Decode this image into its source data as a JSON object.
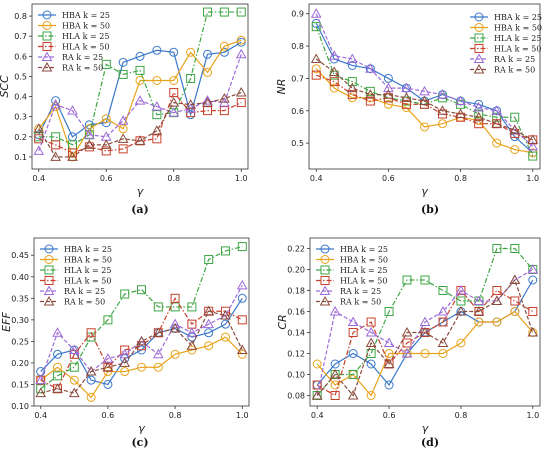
{
  "chart_data": [
    {
      "type": "line",
      "panel": "(a)",
      "xlabel": "γ",
      "ylabel": "SCC",
      "xlim": [
        0.38,
        1.02
      ],
      "ylim": [
        0.04,
        0.86
      ],
      "xticks": [
        "0.4",
        "0.6",
        "0.8",
        "1.0"
      ],
      "yticks": [
        "0.1",
        "0.2",
        "0.3",
        "0.4",
        "0.5",
        "0.6",
        "0.7",
        "0.8"
      ],
      "legend": "top-left",
      "x": [
        0.4,
        0.45,
        0.5,
        0.55,
        0.6,
        0.65,
        0.7,
        0.75,
        0.8,
        0.85,
        0.9,
        0.95,
        1.0
      ],
      "series": [
        {
          "name": "HBA k = 25",
          "values": [
            0.21,
            0.38,
            0.2,
            0.26,
            0.27,
            0.57,
            0.6,
            0.63,
            0.62,
            0.31,
            0.61,
            0.62,
            0.67
          ]
        },
        {
          "name": "HBA k = 50",
          "values": [
            0.24,
            0.35,
            0.1,
            0.24,
            0.29,
            0.24,
            0.48,
            0.48,
            0.48,
            0.62,
            0.52,
            0.65,
            0.68
          ]
        },
        {
          "name": "HLA k = 25",
          "values": [
            0.2,
            0.2,
            0.16,
            0.21,
            0.56,
            0.51,
            0.53,
            0.31,
            0.32,
            0.49,
            0.82,
            0.82,
            0.82
          ]
        },
        {
          "name": "HLA k = 50",
          "values": [
            0.19,
            0.16,
            0.12,
            0.15,
            0.13,
            0.14,
            0.18,
            0.19,
            0.42,
            0.32,
            0.33,
            0.33,
            0.37
          ]
        },
        {
          "name": "RA k = 25",
          "values": [
            0.13,
            0.36,
            0.33,
            0.21,
            0.2,
            0.28,
            0.38,
            0.35,
            0.32,
            0.34,
            0.38,
            0.37,
            0.61
          ]
        },
        {
          "name": "RA k = 50",
          "values": [
            0.24,
            0.1,
            0.1,
            0.16,
            0.16,
            0.19,
            0.18,
            0.23,
            0.37,
            0.36,
            0.37,
            0.39,
            0.42
          ]
        }
      ]
    },
    {
      "type": "line",
      "panel": "(b)",
      "xlabel": "γ",
      "ylabel": "NR",
      "xlim": [
        0.38,
        1.02
      ],
      "ylim": [
        0.42,
        0.93
      ],
      "xticks": [
        "0.4",
        "0.6",
        "0.8",
        "1.0"
      ],
      "yticks": [
        "0.5",
        "0.6",
        "0.7",
        "0.8",
        "0.9"
      ],
      "legend": "top-right",
      "x": [
        0.4,
        0.45,
        0.5,
        0.55,
        0.6,
        0.65,
        0.7,
        0.75,
        0.8,
        0.85,
        0.9,
        0.95,
        1.0
      ],
      "series": [
        {
          "name": "HBA k = 25",
          "values": [
            0.87,
            0.76,
            0.74,
            0.73,
            0.7,
            0.67,
            0.63,
            0.65,
            0.63,
            0.62,
            0.6,
            0.52,
            0.47
          ]
        },
        {
          "name": "HBA k = 50",
          "values": [
            0.73,
            0.67,
            0.64,
            0.64,
            0.62,
            0.61,
            0.55,
            0.56,
            0.58,
            0.57,
            0.5,
            0.48,
            0.47
          ]
        },
        {
          "name": "HLA k = 25",
          "values": [
            0.86,
            0.71,
            0.69,
            0.66,
            0.64,
            0.63,
            0.62,
            0.64,
            0.62,
            0.59,
            0.58,
            0.58,
            0.46
          ]
        },
        {
          "name": "HLA k = 50",
          "values": [
            0.71,
            0.69,
            0.65,
            0.63,
            0.64,
            0.62,
            0.62,
            0.59,
            0.58,
            0.56,
            0.56,
            0.53,
            0.51
          ]
        },
        {
          "name": "RA k = 25",
          "values": [
            0.9,
            0.77,
            0.76,
            0.73,
            0.67,
            0.67,
            0.66,
            0.65,
            0.63,
            0.61,
            0.6,
            0.54,
            0.49
          ]
        },
        {
          "name": "RA k = 50",
          "values": [
            0.76,
            0.72,
            0.67,
            0.65,
            0.65,
            0.64,
            0.63,
            0.6,
            0.59,
            0.58,
            0.56,
            0.54,
            0.51
          ]
        }
      ]
    },
    {
      "type": "line",
      "panel": "(c)",
      "xlabel": "γ",
      "ylabel": "EFF",
      "xlim": [
        0.38,
        1.02
      ],
      "ylim": [
        0.1,
        0.49
      ],
      "xticks": [
        "0.4",
        "0.6",
        "0.8",
        "1.0"
      ],
      "yticks": [
        "0.10",
        "0.15",
        "0.20",
        "0.25",
        "0.30",
        "0.35",
        "0.40",
        "0.45"
      ],
      "legend": "top-left",
      "x": [
        0.4,
        0.45,
        0.5,
        0.55,
        0.6,
        0.65,
        0.7,
        0.75,
        0.8,
        0.85,
        0.9,
        0.95,
        1.0
      ],
      "series": [
        {
          "name": "HBA k = 25",
          "values": [
            0.18,
            0.22,
            0.23,
            0.16,
            0.15,
            0.21,
            0.23,
            0.27,
            0.28,
            0.26,
            0.27,
            0.29,
            0.35
          ]
        },
        {
          "name": "HBA k = 50",
          "values": [
            0.16,
            0.19,
            0.16,
            0.12,
            0.18,
            0.18,
            0.19,
            0.19,
            0.22,
            0.23,
            0.24,
            0.26,
            0.22
          ]
        },
        {
          "name": "HLA k = 25",
          "values": [
            0.14,
            0.17,
            0.19,
            0.26,
            0.3,
            0.36,
            0.37,
            0.33,
            0.33,
            0.33,
            0.44,
            0.46,
            0.47
          ]
        },
        {
          "name": "HLA k = 50",
          "values": [
            0.16,
            0.14,
            0.22,
            0.27,
            0.19,
            0.23,
            0.24,
            0.27,
            0.35,
            0.29,
            0.32,
            0.32,
            0.3
          ]
        },
        {
          "name": "RA k = 25",
          "values": [
            0.16,
            0.27,
            0.23,
            0.18,
            0.21,
            0.22,
            0.25,
            0.22,
            0.29,
            0.27,
            0.29,
            0.31,
            0.38
          ]
        },
        {
          "name": "RA k = 50",
          "values": [
            0.13,
            0.14,
            0.13,
            0.18,
            0.19,
            0.2,
            0.25,
            0.27,
            0.28,
            0.24,
            0.32,
            0.31,
            0.23
          ]
        }
      ]
    },
    {
      "type": "line",
      "panel": "(d)",
      "xlabel": "γ",
      "ylabel": "CR",
      "xlim": [
        0.38,
        1.02
      ],
      "ylim": [
        0.07,
        0.23
      ],
      "xticks": [
        "0.4",
        "0.6",
        "0.8",
        "1.0"
      ],
      "yticks": [
        "0.08",
        "0.10",
        "0.12",
        "0.14",
        "0.16",
        "0.18",
        "0.20",
        "0.22"
      ],
      "legend": "top-left",
      "x": [
        0.4,
        0.45,
        0.5,
        0.55,
        0.6,
        0.65,
        0.7,
        0.75,
        0.8,
        0.85,
        0.9,
        0.95,
        1.0
      ],
      "series": [
        {
          "name": "HBA k = 25",
          "values": [
            0.09,
            0.11,
            0.12,
            0.11,
            0.09,
            0.12,
            0.14,
            0.15,
            0.16,
            0.15,
            0.15,
            0.16,
            0.19
          ]
        },
        {
          "name": "HBA k = 50",
          "values": [
            0.11,
            0.09,
            0.1,
            0.08,
            0.12,
            0.12,
            0.12,
            0.12,
            0.13,
            0.15,
            0.15,
            0.16,
            0.14
          ]
        },
        {
          "name": "HLA k = 25",
          "values": [
            0.08,
            0.1,
            0.1,
            0.12,
            0.16,
            0.19,
            0.19,
            0.18,
            0.17,
            0.17,
            0.22,
            0.22,
            0.2
          ]
        },
        {
          "name": "HLA k = 50",
          "values": [
            0.09,
            0.08,
            0.14,
            0.15,
            0.11,
            0.13,
            0.14,
            0.15,
            0.18,
            0.16,
            0.18,
            0.17,
            0.16
          ]
        },
        {
          "name": "RA k = 25",
          "values": [
            0.08,
            0.16,
            0.15,
            0.14,
            0.13,
            0.12,
            0.15,
            0.16,
            0.18,
            0.17,
            0.17,
            0.19,
            0.2
          ]
        },
        {
          "name": "RA k = 50",
          "values": [
            0.08,
            0.1,
            0.08,
            0.13,
            0.11,
            0.14,
            0.14,
            0.13,
            0.16,
            0.16,
            0.17,
            0.19,
            0.14
          ]
        }
      ]
    }
  ],
  "styles": [
    {
      "color": "#3a78c9",
      "marker": "circle",
      "dash": ""
    },
    {
      "color": "#e8a31c",
      "marker": "circle",
      "dash": ""
    },
    {
      "color": "#3fa544",
      "marker": "square",
      "dash": "5,2,1.5,2"
    },
    {
      "color": "#c8402c",
      "marker": "square",
      "dash": "5,2,1.5,2"
    },
    {
      "color": "#9d6ad9",
      "marker": "triangle",
      "dash": "4,2"
    },
    {
      "color": "#8a4a3c",
      "marker": "triangle",
      "dash": "4,2"
    }
  ]
}
